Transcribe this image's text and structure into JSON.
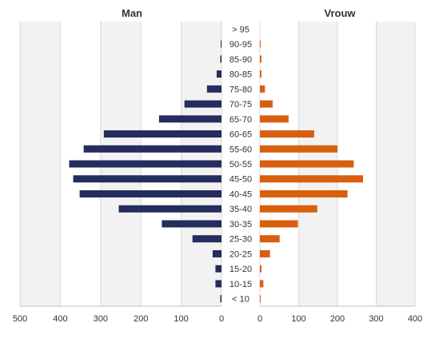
{
  "chart_data": {
    "type": "bar",
    "orientation": "horizontal",
    "layout": "population-pyramid",
    "panels": [
      {
        "title": "Man",
        "side": "left",
        "xlim": [
          0,
          500
        ],
        "ticks": [
          500,
          400,
          300,
          200,
          100,
          0
        ]
      },
      {
        "title": "Vrouw",
        "side": "right",
        "xlim": [
          0,
          400
        ],
        "ticks": [
          0,
          100,
          200,
          300,
          400
        ]
      }
    ],
    "categories": [
      "> 95",
      "90-95",
      "85-90",
      "80-85",
      "75-80",
      "70-75",
      "65-70",
      "60-65",
      "55-60",
      "50-55",
      "45-50",
      "40-45",
      "35-40",
      "30-35",
      "25-30",
      "20-25",
      "15-20",
      "10-15",
      "< 10"
    ],
    "series": [
      {
        "name": "Man",
        "color": "#252c5e",
        "values": [
          0,
          2,
          3,
          12,
          36,
          92,
          155,
          292,
          342,
          378,
          368,
          352,
          255,
          148,
          72,
          22,
          15,
          15,
          3
        ]
      },
      {
        "name": "Vrouw",
        "color": "#d95f0e",
        "values": [
          0,
          2,
          4,
          4,
          13,
          33,
          74,
          140,
          200,
          242,
          266,
          226,
          148,
          98,
          51,
          26,
          4,
          9,
          2
        ]
      }
    ],
    "grid": true
  }
}
